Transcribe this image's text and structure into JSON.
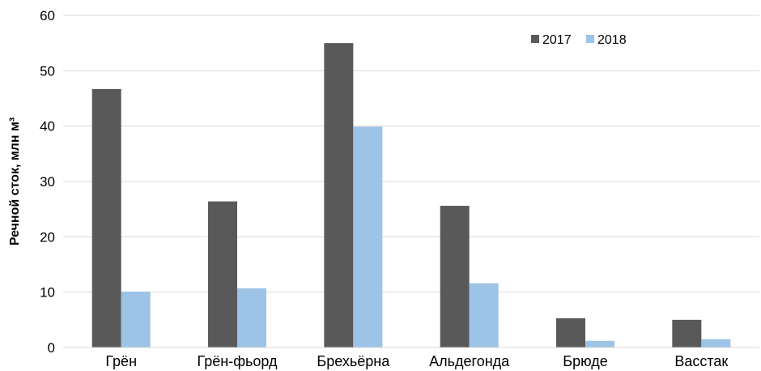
{
  "chart_data": {
    "type": "bar",
    "categories": [
      "Грён",
      "Грён-фьорд",
      "Брехьёрна",
      "Альдегонда",
      "Брюде",
      "Васстак"
    ],
    "series": [
      {
        "name": "2017",
        "values": [
          46.7,
          26.4,
          55.0,
          25.6,
          5.3,
          5.0
        ],
        "color": "#595959"
      },
      {
        "name": "2018",
        "values": [
          10.1,
          10.7,
          39.9,
          11.6,
          1.2,
          1.5
        ],
        "color": "#9dc3e6"
      }
    ],
    "ylabel": "Речной сток, млн  м³",
    "ylim": [
      0,
      60
    ],
    "yticks": [
      0,
      10,
      20,
      30,
      40,
      50,
      60
    ],
    "grid": true,
    "legend_position": "top-right"
  }
}
